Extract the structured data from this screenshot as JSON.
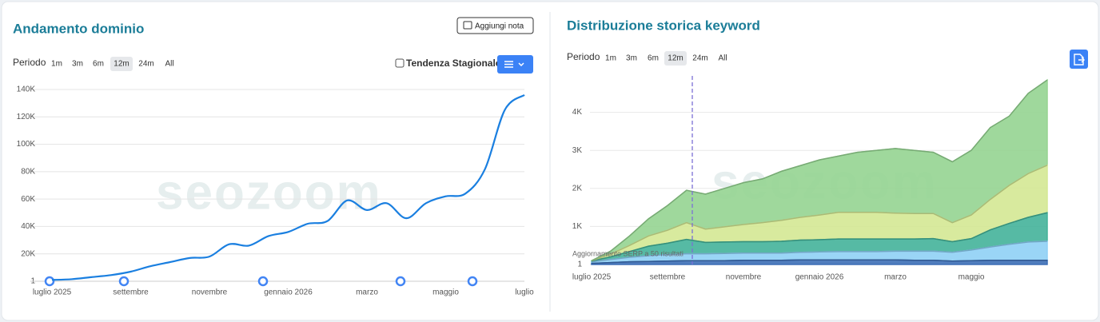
{
  "ui": {
    "left": {
      "note_button": "Aggiungi nota",
      "period_label": "Periodo",
      "periods": [
        "1m",
        "3m",
        "6m",
        "12m",
        "24m",
        "All"
      ],
      "active_period": "12m",
      "seasonal": "Tendenza Stagionale"
    },
    "right": {
      "period_label": "Periodo",
      "periods": [
        "1m",
        "3m",
        "6m",
        "12m",
        "24m",
        "All"
      ],
      "active_period": "12m"
    }
  },
  "chart_data": [
    {
      "type": "line",
      "title": "Andamento dominio",
      "watermark": "seozoom",
      "color": "#1a7fe0",
      "grid": true,
      "categories": [
        "luglio 2025",
        null,
        null,
        null,
        "settembre",
        null,
        null,
        null,
        "novembre",
        null,
        null,
        null,
        "gennaio 2026",
        null,
        null,
        null,
        "marzo",
        null,
        null,
        null,
        "maggio",
        null,
        null,
        null,
        "luglio"
      ],
      "values": [
        1000,
        1500,
        3000,
        4500,
        7000,
        11000,
        14000,
        17000,
        18000,
        27000,
        26000,
        33000,
        36000,
        42000,
        44000,
        59000,
        52000,
        57000,
        46000,
        57000,
        62000,
        64000,
        82000,
        125000,
        136000
      ],
      "ylim": [
        0,
        140000
      ],
      "yticks": [
        1,
        {
          "value": 20000,
          "label": "20K"
        },
        {
          "value": 40000,
          "label": "40K"
        },
        {
          "value": 60000,
          "label": "60K"
        },
        {
          "value": 80000,
          "label": "80K"
        },
        {
          "value": 100000,
          "label": "100K"
        },
        {
          "value": 120000,
          "label": "120K"
        },
        {
          "value": 140000,
          "label": "140K"
        }
      ]
    },
    {
      "type": "stacked_area",
      "title": "Distribuzione storica keyword",
      "watermark": "seozoom",
      "grid": true,
      "annotation": "Aggiornamento SERP a 50 risultati",
      "categories": [
        "luglio 2025",
        null,
        null,
        null,
        "settembre",
        null,
        null,
        null,
        "novembre",
        null,
        null,
        null,
        "gennaio 2026",
        null,
        null,
        null,
        "marzo",
        null,
        null,
        null,
        "maggio",
        null,
        null,
        null,
        null
      ],
      "series": [
        {
          "color": "#3d6fb6",
          "values": [
            30,
            50,
            70,
            80,
            90,
            100,
            100,
            100,
            110,
            110,
            110,
            120,
            120,
            120,
            120,
            120,
            120,
            110,
            110,
            90,
            100,
            110,
            110,
            110,
            110
          ]
        },
        {
          "color": "#8fd0f5",
          "values": [
            40,
            80,
            120,
            150,
            170,
            180,
            180,
            190,
            190,
            190,
            190,
            200,
            210,
            220,
            220,
            220,
            230,
            240,
            240,
            230,
            280,
            350,
            420,
            480,
            500
          ]
        },
        {
          "color": "#44b39a",
          "values": [
            20,
            70,
            150,
            250,
            300,
            380,
            300,
            300,
            300,
            300,
            310,
            320,
            320,
            330,
            330,
            330,
            320,
            320,
            330,
            280,
            300,
            450,
            550,
            650,
            750
          ]
        },
        {
          "color": "#d4e894",
          "values": [
            10,
            70,
            160,
            270,
            340,
            440,
            350,
            400,
            450,
            500,
            550,
            600,
            650,
            700,
            700,
            700,
            680,
            670,
            660,
            500,
            620,
            800,
            1000,
            1150,
            1250
          ]
        },
        {
          "color": "#95d491",
          "values": [
            0,
            80,
            250,
            450,
            650,
            850,
            920,
            1010,
            1100,
            1150,
            1290,
            1360,
            1450,
            1480,
            1580,
            1630,
            1700,
            1660,
            1610,
            1600,
            1700,
            1890,
            1820,
            2110,
            2240
          ]
        }
      ],
      "ylim": [
        0,
        5000
      ],
      "yticks": [
        1,
        {
          "value": 1000,
          "label": "1K"
        },
        {
          "value": 2000,
          "label": "2K"
        },
        {
          "value": 3000,
          "label": "3K"
        },
        {
          "value": 4000,
          "label": "4K"
        }
      ]
    }
  ]
}
